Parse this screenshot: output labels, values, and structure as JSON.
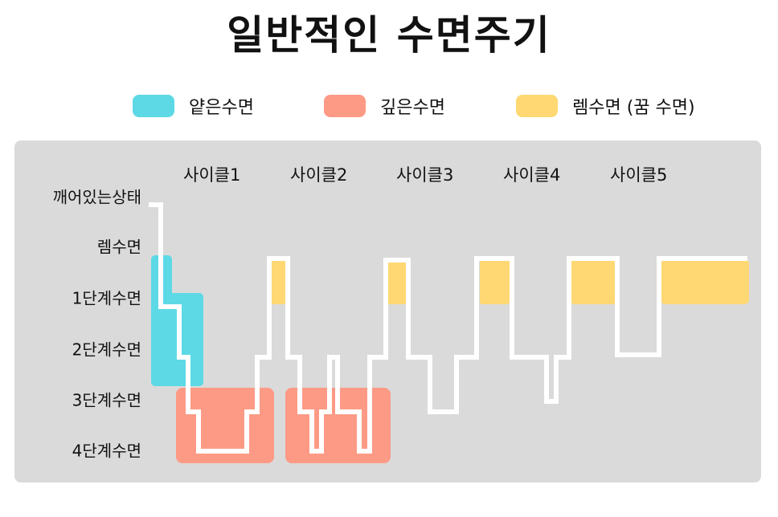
{
  "title": "일반적인 수면주기",
  "legend": [
    {
      "label": "얕은수면",
      "color": "#5dd9e6"
    },
    {
      "label": "깊은수면",
      "color": "#fc9a85"
    },
    {
      "label": "렘수면 (꿈 수면)",
      "color": "#ffd873"
    }
  ],
  "stages": [
    "깨어있는상태",
    "렘수면",
    "1단계수면",
    "2단계수면",
    "3단계수면",
    "4단계수면"
  ],
  "cycles": [
    "사이클1",
    "사이클2",
    "사이클3",
    "사이클4",
    "사이클5"
  ],
  "colors": {
    "panel": "#dadada",
    "line": "#ffffff"
  }
}
